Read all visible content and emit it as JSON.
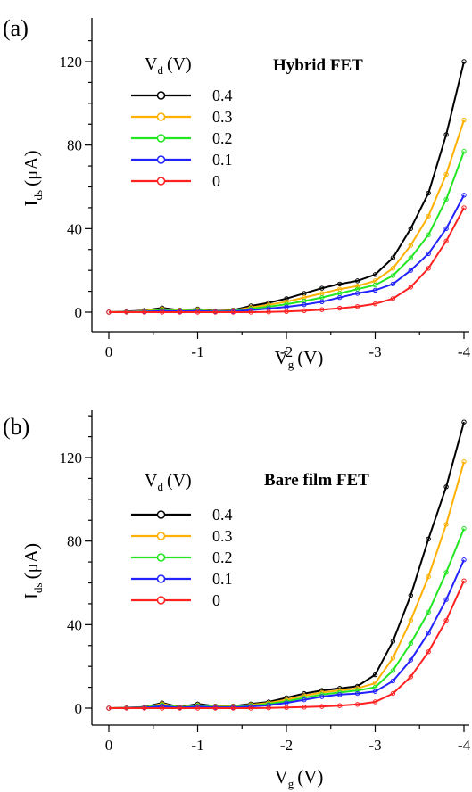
{
  "chart_data": [
    {
      "type": "line",
      "panel": "(a)",
      "title": "Hybrid FET",
      "xlabel": {
        "main": "V",
        "sub": "g",
        "unit": "(V)"
      },
      "ylabel": {
        "main": "I",
        "sub": "ds",
        "unit": "(μA)"
      },
      "legend_title": {
        "main": "V",
        "sub": "d",
        "unit": "(V)"
      },
      "legend_position": "top-left",
      "xlim": [
        0,
        -4
      ],
      "ylim": [
        -5,
        130
      ],
      "xticks": [
        0,
        -1,
        -2,
        -3,
        -4
      ],
      "xtick_labels": [
        "0",
        "-1",
        "-2",
        "-3",
        "-4"
      ],
      "yticks": [
        0,
        40,
        80,
        120
      ],
      "ytick_labels": [
        "0",
        "40",
        "80",
        "120"
      ],
      "x": [
        0,
        -0.2,
        -0.4,
        -0.6,
        -0.8,
        -1.0,
        -1.2,
        -1.4,
        -1.6,
        -1.8,
        -2.0,
        -2.2,
        -2.4,
        -2.6,
        -2.8,
        -3.0,
        -3.2,
        -3.4,
        -3.6,
        -3.8,
        -4.0
      ],
      "series": [
        {
          "name": "0.4",
          "color": "#000000",
          "values": [
            0,
            0.3,
            0.8,
            2,
            1,
            1.5,
            0.5,
            1,
            3,
            4.5,
            6.5,
            9,
            11.5,
            13.5,
            15,
            18,
            26,
            40,
            57,
            85,
            120
          ]
        },
        {
          "name": "0.3",
          "color": "#FFB000",
          "values": [
            0,
            0.2,
            0.6,
            1.5,
            0.8,
            1.2,
            0.4,
            0.8,
            2.2,
            3.5,
            5,
            7,
            9,
            11,
            12.5,
            15,
            21,
            32,
            46,
            66,
            92
          ]
        },
        {
          "name": "0.2",
          "color": "#22E622",
          "values": [
            0,
            0.1,
            0.4,
            1,
            0.6,
            0.9,
            0.3,
            0.6,
            1.6,
            2.6,
            3.8,
            5.3,
            7,
            9,
            11,
            13,
            17.5,
            26,
            37,
            54,
            77
          ]
        },
        {
          "name": "0.1",
          "color": "#2222FF",
          "values": [
            0,
            0.1,
            0.2,
            0.6,
            0.4,
            0.6,
            0.2,
            0.4,
            1,
            1.7,
            2.5,
            3.6,
            5,
            7,
            9,
            10.5,
            13.5,
            20,
            28,
            40,
            56
          ]
        },
        {
          "name": "0",
          "color": "#FF2020",
          "values": [
            0,
            0,
            0,
            0,
            0,
            0,
            0,
            0,
            0,
            0.1,
            0.3,
            0.7,
            1.2,
            1.9,
            2.7,
            4,
            6.5,
            12,
            21,
            34,
            50
          ]
        }
      ]
    },
    {
      "type": "line",
      "panel": "(b)",
      "title": "Bare film FET",
      "xlabel": {
        "main": "V",
        "sub": "g",
        "unit": "(V)"
      },
      "ylabel": {
        "main": "I",
        "sub": "ds",
        "unit": "(μA)"
      },
      "legend_title": {
        "main": "V",
        "sub": "d",
        "unit": "(V)"
      },
      "legend_position": "top-left",
      "xlim": [
        0,
        -4
      ],
      "ylim": [
        -5,
        140
      ],
      "xticks": [
        0,
        -1,
        -2,
        -3,
        -4
      ],
      "xtick_labels": [
        "0",
        "-1",
        "-2",
        "-3",
        "-4"
      ],
      "yticks": [
        0,
        40,
        80,
        120
      ],
      "ytick_labels": [
        "0",
        "40",
        "80",
        "120"
      ],
      "x": [
        0,
        -0.2,
        -0.4,
        -0.6,
        -0.8,
        -1.0,
        -1.2,
        -1.4,
        -1.6,
        -1.8,
        -2.0,
        -2.2,
        -2.4,
        -2.6,
        -2.8,
        -3.0,
        -3.2,
        -3.4,
        -3.6,
        -3.8,
        -4.0
      ],
      "series": [
        {
          "name": "0.4",
          "color": "#000000",
          "values": [
            0,
            0.2,
            0.5,
            2.5,
            0.5,
            2,
            1,
            1,
            2,
            3,
            5,
            7,
            8.5,
            9.5,
            10.5,
            16,
            32,
            54,
            81,
            106,
            137
          ]
        },
        {
          "name": "0.3",
          "color": "#FFB000",
          "values": [
            0,
            0.2,
            0.4,
            2,
            0.4,
            1.5,
            0.8,
            0.8,
            1.6,
            2.5,
            4,
            6,
            7.5,
            8.5,
            9.5,
            12,
            24,
            42,
            63,
            88,
            118
          ]
        },
        {
          "name": "0.2",
          "color": "#22E622",
          "values": [
            0,
            0.1,
            0.3,
            1.5,
            0.3,
            1.2,
            0.6,
            0.6,
            1.2,
            2,
            3.2,
            5,
            6.5,
            7.5,
            8.5,
            10,
            18,
            31,
            46,
            65,
            86
          ]
        },
        {
          "name": "0.1",
          "color": "#2222FF",
          "values": [
            0,
            0.1,
            0.2,
            1,
            0.2,
            0.8,
            0.4,
            0.4,
            0.8,
            1.4,
            2.5,
            4,
            5.5,
            6.5,
            7,
            8,
            13,
            23,
            36,
            52,
            71
          ]
        },
        {
          "name": "0",
          "color": "#FF2020",
          "values": [
            0,
            0,
            0,
            0,
            0,
            0,
            0,
            0,
            0,
            0.1,
            0.3,
            0.5,
            0.8,
            1.2,
            1.8,
            3,
            7,
            15,
            27,
            42,
            61
          ]
        }
      ]
    }
  ]
}
